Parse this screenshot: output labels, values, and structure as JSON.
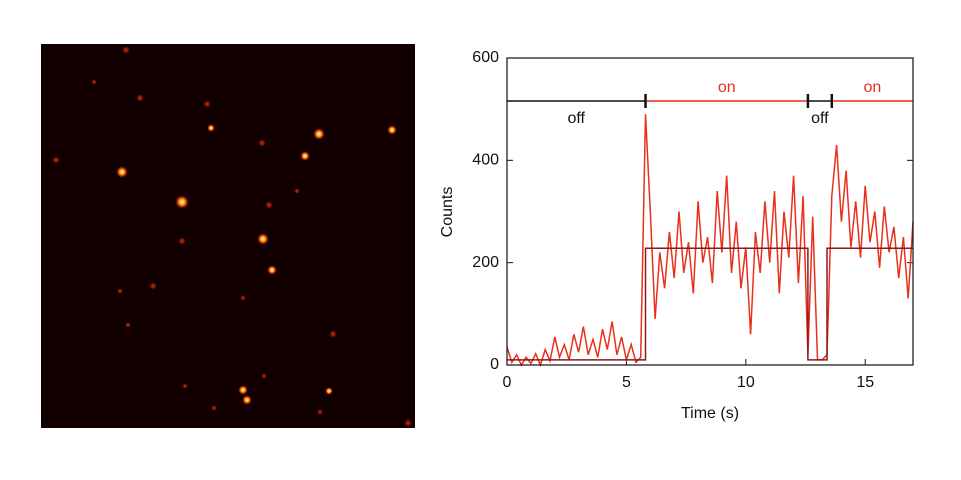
{
  "chart_data": {
    "type": "line",
    "xlabel": "Time (s)",
    "ylabel": "Counts",
    "xlim": [
      0,
      17
    ],
    "xticks": [
      0,
      5,
      10,
      15
    ],
    "ylim": [
      0,
      600
    ],
    "yticks": [
      0,
      200,
      400,
      600
    ],
    "series": [
      {
        "color": "#e8301c",
        "x": [
          0.0,
          0.2,
          0.4,
          0.6,
          0.8,
          1.0,
          1.2,
          1.4,
          1.6,
          1.8,
          2.0,
          2.2,
          2.4,
          2.6,
          2.8,
          3.0,
          3.2,
          3.4,
          3.6,
          3.8,
          4.0,
          4.2,
          4.4,
          4.6,
          4.8,
          5.0,
          5.2,
          5.4,
          5.6,
          5.8,
          6.0,
          6.2,
          6.4,
          6.6,
          6.8,
          7.0,
          7.2,
          7.4,
          7.6,
          7.8,
          8.0,
          8.2,
          8.4,
          8.6,
          8.8,
          9.0,
          9.2,
          9.4,
          9.6,
          9.8,
          10.0,
          10.2,
          10.4,
          10.6,
          10.8,
          11.0,
          11.2,
          11.4,
          11.6,
          11.8,
          12.0,
          12.2,
          12.4,
          12.6,
          12.8,
          13.0,
          13.2,
          13.4,
          13.6,
          13.8,
          14.0,
          14.2,
          14.4,
          14.6,
          14.8,
          15.0,
          15.2,
          15.4,
          15.6,
          15.8,
          16.0,
          16.2,
          16.4,
          16.6,
          16.8,
          17.0
        ],
        "values": [
          35,
          5,
          20,
          0,
          15,
          3,
          22,
          0,
          30,
          8,
          55,
          15,
          40,
          10,
          60,
          25,
          75,
          20,
          50,
          15,
          70,
          30,
          85,
          20,
          55,
          10,
          40,
          5,
          15,
          490,
          300,
          90,
          220,
          150,
          260,
          170,
          300,
          180,
          240,
          140,
          320,
          200,
          250,
          160,
          340,
          220,
          370,
          180,
          280,
          150,
          230,
          60,
          260,
          180,
          320,
          200,
          340,
          140,
          300,
          210,
          370,
          160,
          330,
          20,
          290,
          10,
          10,
          20,
          330,
          430,
          280,
          380,
          230,
          320,
          210,
          350,
          240,
          300,
          190,
          310,
          220,
          270,
          170,
          250,
          130,
          280
        ]
      },
      {
        "color": "#8b1a1a",
        "x": [
          0,
          5.8,
          5.8,
          12.6,
          12.6,
          13.4,
          13.4,
          17
        ],
        "values": [
          10,
          10,
          228,
          228,
          10,
          10,
          228,
          228
        ]
      }
    ],
    "states": [
      {
        "label": "off",
        "start": 0,
        "end": 5.8,
        "color": "#111111"
      },
      {
        "label": "on",
        "start": 5.8,
        "end": 12.6,
        "color": "#e8301c"
      },
      {
        "label": "off",
        "start": 12.6,
        "end": 13.6,
        "color": "#111111"
      },
      {
        "label": "on",
        "start": 13.6,
        "end": 17,
        "color": "#e8301c"
      }
    ]
  }
}
